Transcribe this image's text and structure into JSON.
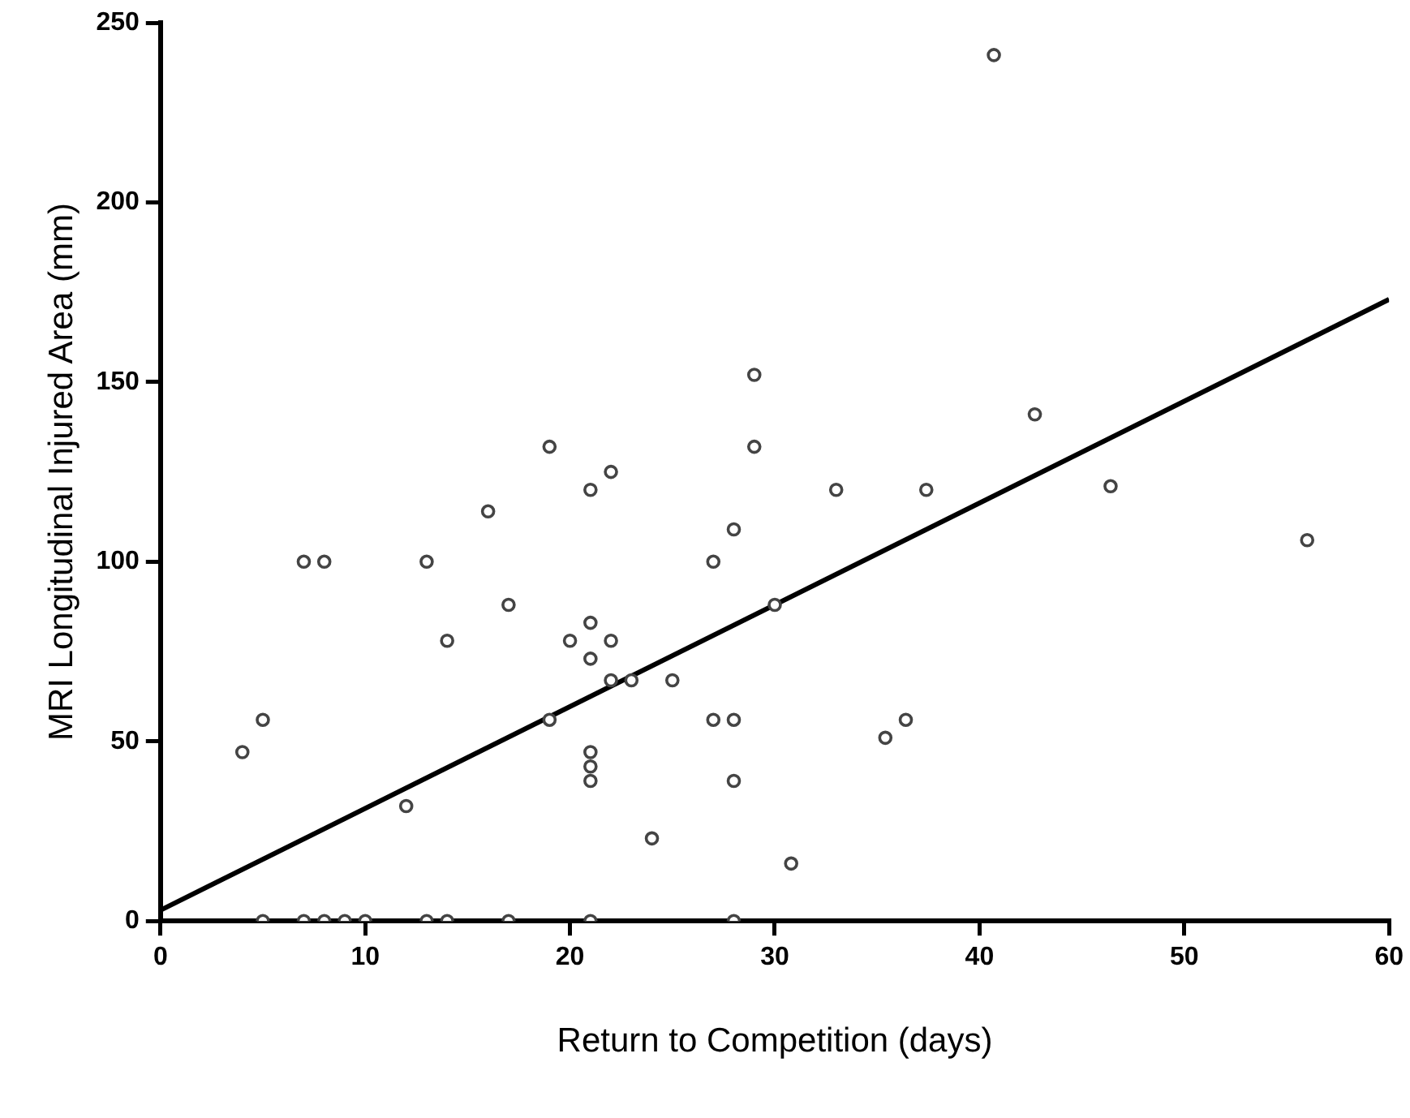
{
  "chart_data": {
    "type": "scatter",
    "xlabel": "Return to Competition (days)",
    "ylabel": "MRI Longitudinal Injured Area (mm)",
    "xlim": [
      0,
      60
    ],
    "xticks": [
      0,
      10,
      20,
      30,
      40,
      50,
      60
    ],
    "ylim": [
      0,
      250
    ],
    "yticks": [
      0,
      50,
      100,
      150,
      200,
      250
    ],
    "grid": false,
    "legend": false,
    "marker": "circle",
    "series": [
      {
        "color": "#444444",
        "x": [
          19,
          29,
          29,
          22,
          21,
          16,
          7,
          8,
          13,
          27,
          28,
          17,
          14,
          20,
          22,
          21,
          21,
          22,
          23,
          25,
          5,
          4,
          19,
          27,
          28,
          12,
          21,
          21,
          21,
          28,
          24,
          42.7,
          33,
          37.4,
          46.4,
          56,
          30,
          36.4,
          35.4,
          30.8,
          40.7,
          5,
          7,
          8,
          9,
          10,
          13,
          14,
          17,
          21,
          28
        ],
        "values": [
          132,
          132,
          152,
          125,
          120,
          114,
          100,
          100,
          100,
          100,
          109,
          88,
          78,
          78,
          78,
          83,
          73,
          67,
          67,
          67,
          56,
          47,
          56,
          56,
          56,
          32,
          47,
          43,
          39,
          39,
          23,
          141,
          120,
          120,
          121,
          106,
          88,
          56,
          51,
          16,
          241,
          0,
          0,
          0,
          0,
          0,
          0,
          0,
          0,
          0,
          0
        ]
      },
      {
        "type": "line",
        "color": "#000000",
        "marker": "none",
        "x": [
          0,
          60
        ],
        "values": [
          3,
          173
        ]
      }
    ]
  }
}
